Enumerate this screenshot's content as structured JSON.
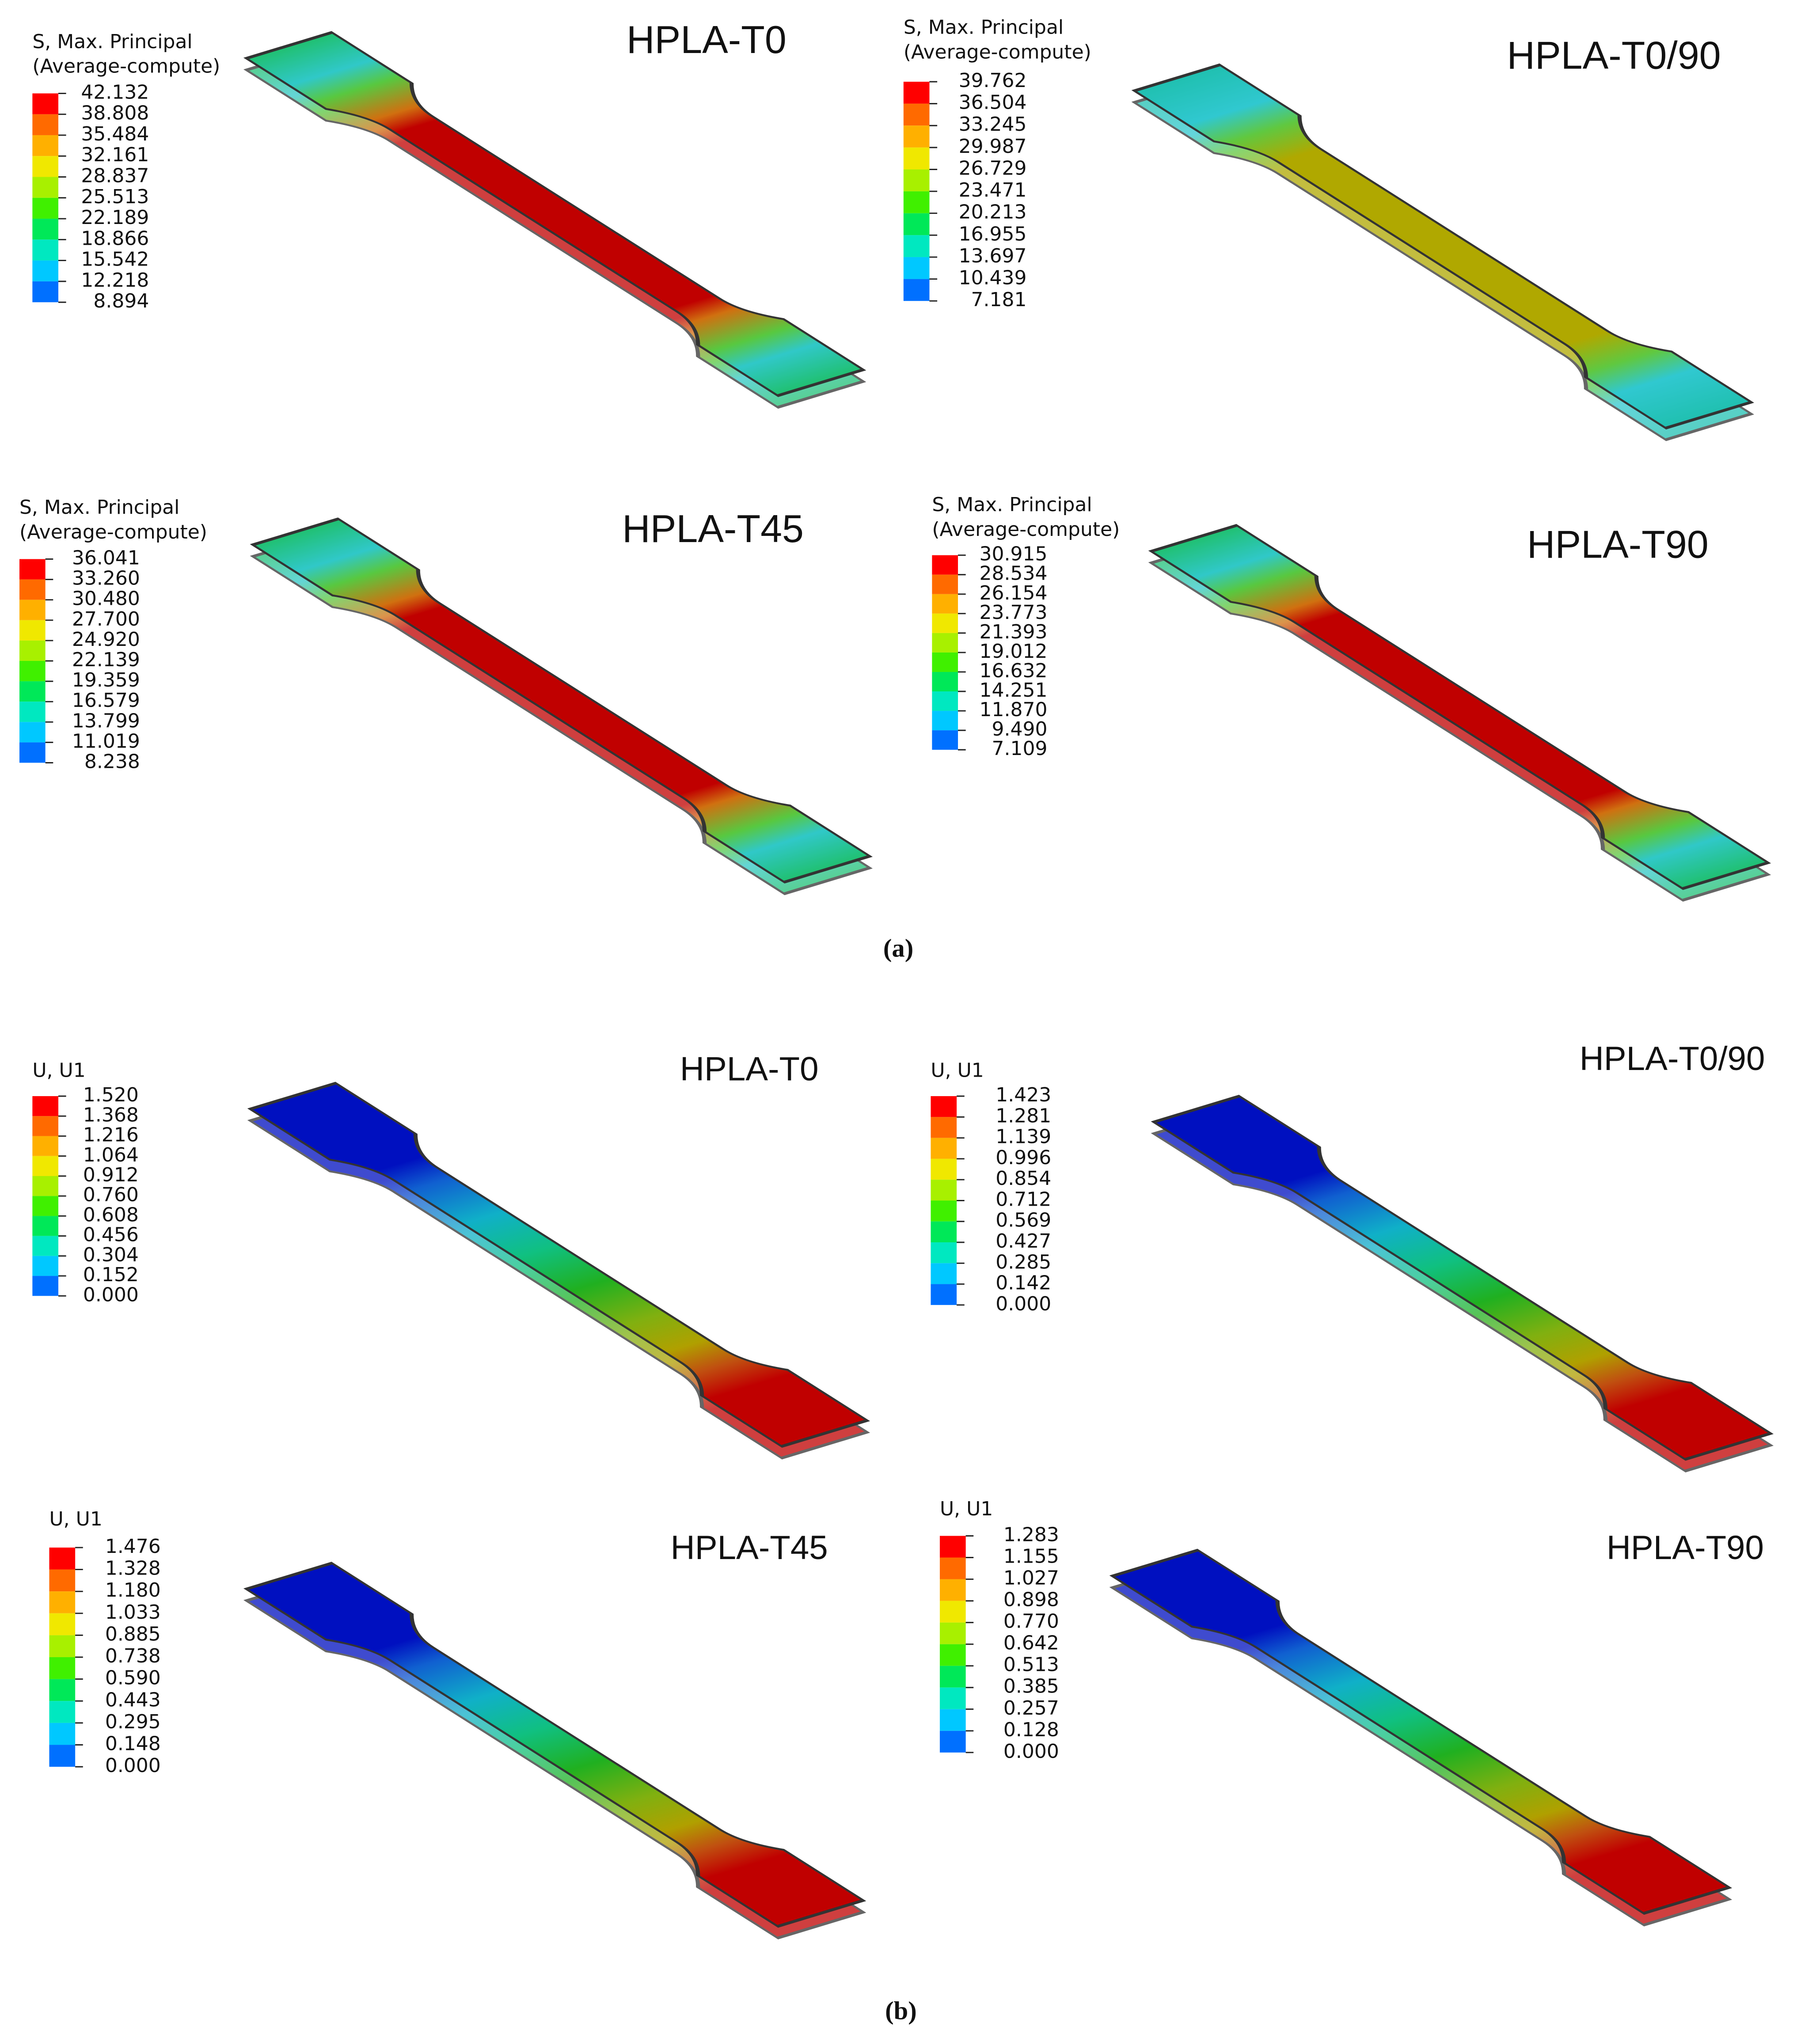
{
  "legend_colors": [
    "#ff0000",
    "#ff6a00",
    "#ffb000",
    "#f0e800",
    "#a8f000",
    "#40f000",
    "#00e858",
    "#00e8c0",
    "#00c8ff",
    "#0070ff",
    "#0000f0"
  ],
  "panels": [
    {
      "caption": "(a)",
      "plots": [
        {
          "name": "HPLA-T0",
          "legend_title": [
            "S, Max. Principal",
            "(Average-compute)"
          ],
          "values": [
            "42.132",
            "38.808",
            "35.484",
            "32.161",
            "28.837",
            "25.513",
            "22.189",
            "18.866",
            "15.542",
            "12.218",
            "8.894"
          ]
        },
        {
          "name": "HPLA-T0/90",
          "legend_title": [
            "S, Max. Principal",
            "(Average-compute)"
          ],
          "values": [
            "39.762",
            "36.504",
            "33.245",
            "29.987",
            "26.729",
            "23.471",
            "20.213",
            "16.955",
            "13.697",
            "10.439",
            "7.181"
          ]
        },
        {
          "name": "HPLA-T45",
          "legend_title": [
            "S, Max. Principal",
            "(Average-compute)"
          ],
          "values": [
            "36.041",
            "33.260",
            "30.480",
            "27.700",
            "24.920",
            "22.139",
            "19.359",
            "16.579",
            "13.799",
            "11.019",
            "8.238"
          ]
        },
        {
          "name": "HPLA-T90",
          "legend_title": [
            "S, Max. Principal",
            "(Average-compute)"
          ],
          "values": [
            "30.915",
            "28.534",
            "26.154",
            "23.773",
            "21.393",
            "19.012",
            "16.632",
            "14.251",
            "11.870",
            "9.490",
            "7.109"
          ]
        }
      ]
    },
    {
      "caption": "(b)",
      "plots": [
        {
          "name": "HPLA-T0",
          "legend_title": [
            "U, U1"
          ],
          "values": [
            "1.520",
            "1.368",
            "1.216",
            "1.064",
            "0.912",
            "0.760",
            "0.608",
            "0.456",
            "0.304",
            "0.152",
            "0.000"
          ]
        },
        {
          "name": "HPLA-T0/90",
          "legend_title": [
            "U, U1"
          ],
          "values": [
            "1.423",
            "1.281",
            "1.139",
            "0.996",
            "0.854",
            "0.712",
            "0.569",
            "0.427",
            "0.285",
            "0.142",
            "0.000"
          ]
        },
        {
          "name": "HPLA-T45",
          "legend_title": [
            "U, U1"
          ],
          "values": [
            "1.476",
            "1.328",
            "1.180",
            "1.033",
            "0.885",
            "0.738",
            "0.590",
            "0.443",
            "0.295",
            "0.148",
            "0.000"
          ]
        },
        {
          "name": "HPLA-T90",
          "legend_title": [
            "U, U1"
          ],
          "values": [
            "1.283",
            "1.155",
            "1.027",
            "0.898",
            "0.770",
            "0.642",
            "0.513",
            "0.385",
            "0.257",
            "0.128",
            "0.000"
          ]
        }
      ]
    }
  ]
}
